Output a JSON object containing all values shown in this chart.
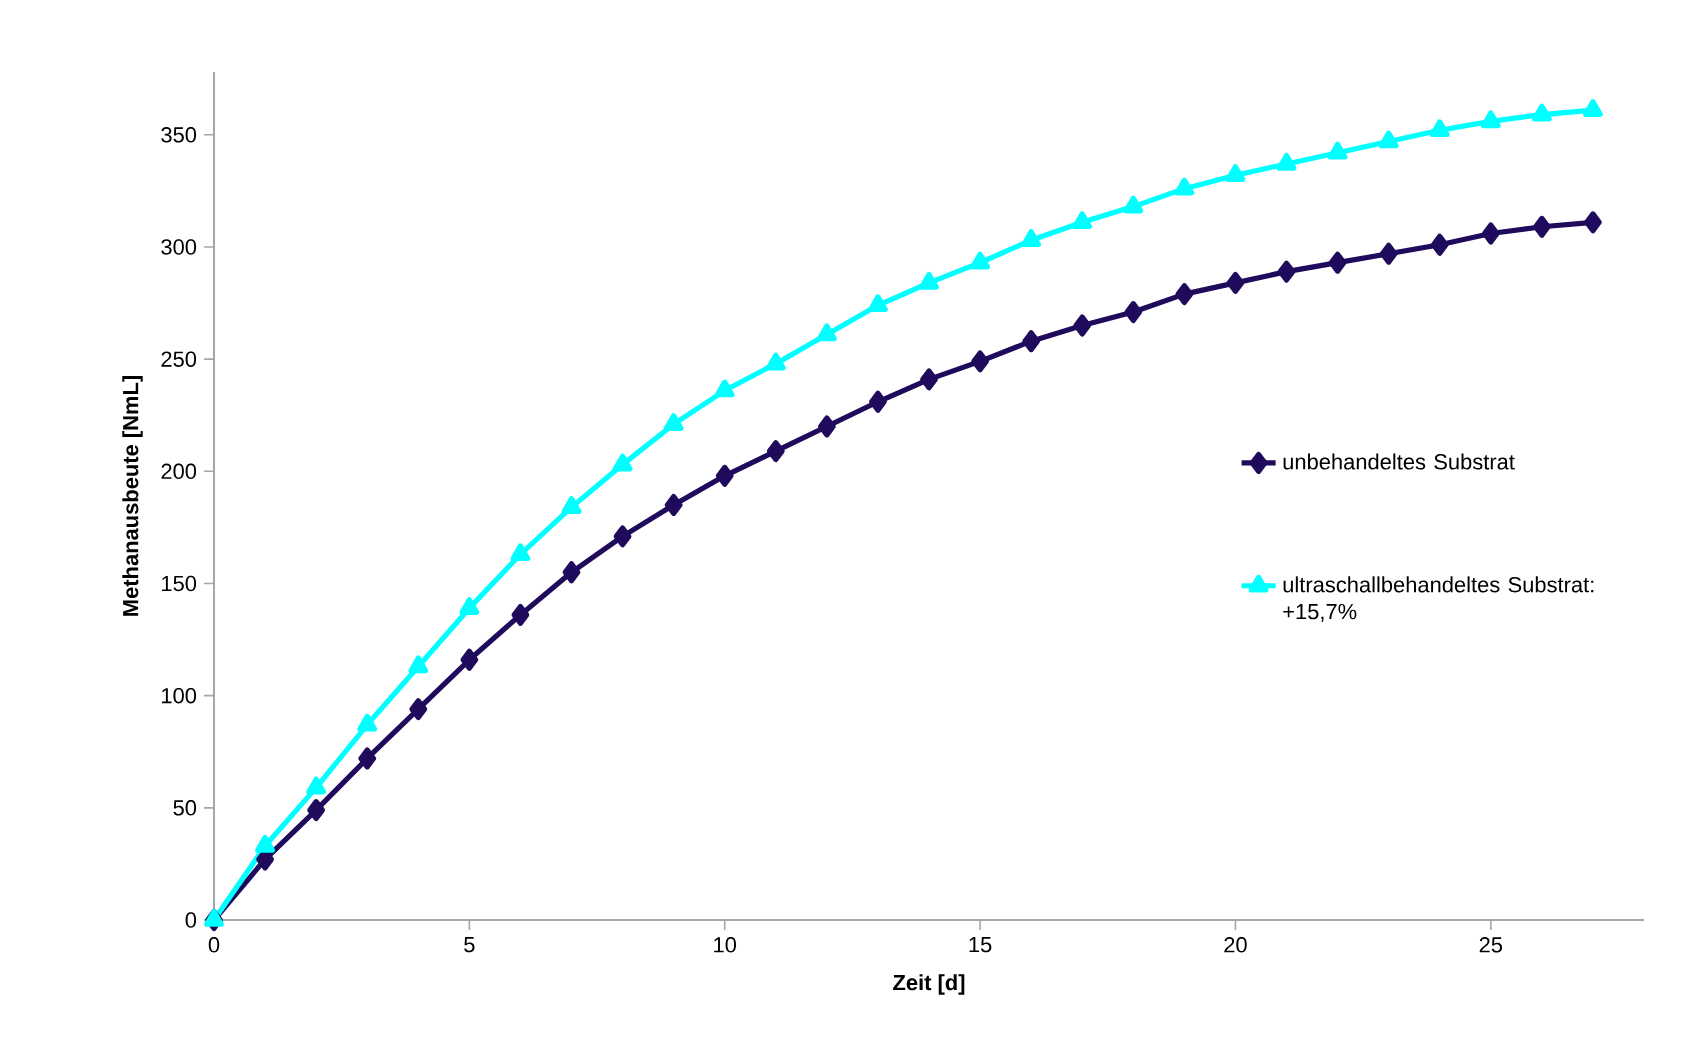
{
  "chart_data": {
    "type": "line",
    "xlabel": "Zeit [d]",
    "ylabel": "Methanausbeute [NmL]",
    "x": [
      0,
      1,
      2,
      3,
      4,
      5,
      6,
      7,
      8,
      9,
      10,
      11,
      12,
      13,
      14,
      15,
      16,
      17,
      18,
      19,
      20,
      21,
      22,
      23,
      24,
      25,
      26,
      27
    ],
    "series": [
      {
        "name": "unbehandeltes Substrat",
        "color": "#1f0a5c",
        "marker": "diamond",
        "values": [
          0,
          27,
          49,
          72,
          94,
          116,
          136,
          155,
          171,
          185,
          198,
          209,
          220,
          231,
          241,
          249,
          258,
          265,
          271,
          279,
          284,
          289,
          293,
          297,
          301,
          306,
          309,
          311
        ]
      },
      {
        "name": "ultraschallbehandeltes Substrat: +15,7%",
        "color": "#00ffff",
        "marker": "triangle",
        "values": [
          0,
          33,
          59,
          87,
          113,
          139,
          163,
          184,
          203,
          221,
          236,
          248,
          261,
          274,
          284,
          293,
          303,
          311,
          318,
          326,
          332,
          337,
          342,
          347,
          352,
          356,
          359,
          361
        ]
      }
    ],
    "xlim": [
      0,
      28
    ],
    "xticks": [
      0,
      5,
      10,
      15,
      20,
      25
    ],
    "ylim": [
      0,
      378
    ],
    "yticks": [
      0,
      50,
      100,
      150,
      200,
      250,
      300,
      350
    ],
    "grid": false,
    "legend": "right",
    "line_style": "solid"
  }
}
